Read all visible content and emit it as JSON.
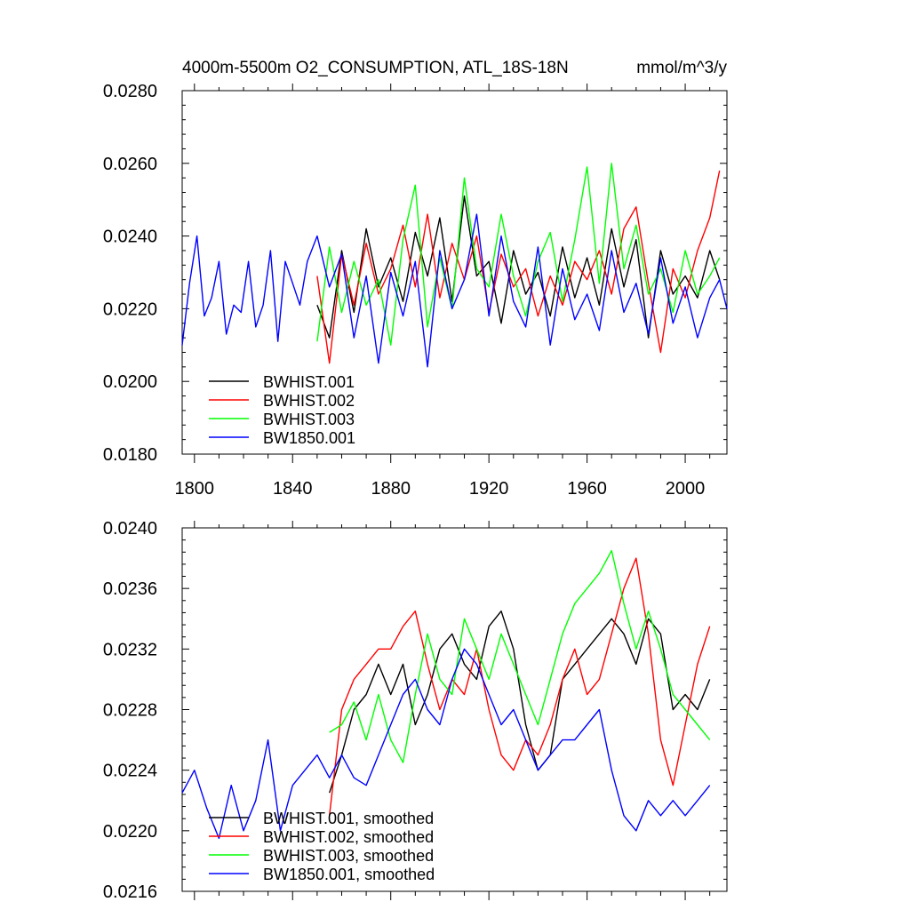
{
  "chart_data": [
    {
      "type": "line",
      "title_left": "4000m-5500m O2_CONSUMPTION, ATL_18S-18N",
      "title_right": "mmol/m^3/y",
      "xlabel": "",
      "ylabel": "",
      "xlim": [
        1795,
        2017
      ],
      "ylim": [
        0.018,
        0.028
      ],
      "xticks": [
        1800,
        1840,
        1880,
        1920,
        1960,
        2000
      ],
      "xtick_labels": [
        "1800",
        "1840",
        "1880",
        "1920",
        "1960",
        "2000"
      ],
      "yticks": [
        0.018,
        0.02,
        0.022,
        0.024,
        0.026,
        0.028
      ],
      "ytick_labels": [
        "0.0180",
        "0.0200",
        "0.0220",
        "0.0240",
        "0.0260",
        "0.0280"
      ],
      "grid": false,
      "legend_position": "bottom-left",
      "series": [
        {
          "name": "BWHIST.001",
          "color": "#000000",
          "x": [
            1850,
            1855,
            1860,
            1865,
            1870,
            1875,
            1880,
            1885,
            1890,
            1895,
            1900,
            1905,
            1910,
            1915,
            1920,
            1925,
            1930,
            1935,
            1940,
            1945,
            1950,
            1955,
            1960,
            1965,
            1970,
            1975,
            1980,
            1985,
            1990,
            1995,
            2000,
            2005,
            2010,
            2014
          ],
          "values": [
            0.0221,
            0.0212,
            0.0236,
            0.0219,
            0.0242,
            0.0226,
            0.0234,
            0.0222,
            0.0241,
            0.0229,
            0.0245,
            0.0222,
            0.0251,
            0.0229,
            0.0233,
            0.0216,
            0.0236,
            0.0224,
            0.023,
            0.0218,
            0.0237,
            0.0223,
            0.0234,
            0.0221,
            0.0242,
            0.0226,
            0.0239,
            0.0212,
            0.0236,
            0.0224,
            0.0229,
            0.0223,
            0.0236,
            0.0228
          ]
        },
        {
          "name": "BWHIST.002",
          "color": "#ff0000",
          "x": [
            1850,
            1855,
            1860,
            1865,
            1870,
            1875,
            1880,
            1885,
            1890,
            1895,
            1900,
            1905,
            1910,
            1915,
            1920,
            1925,
            1930,
            1935,
            1940,
            1945,
            1950,
            1955,
            1960,
            1965,
            1970,
            1975,
            1980,
            1985,
            1990,
            1995,
            2000,
            2005,
            2010,
            2014
          ],
          "values": [
            0.0229,
            0.0205,
            0.0235,
            0.0221,
            0.0238,
            0.0224,
            0.0231,
            0.0243,
            0.0226,
            0.0246,
            0.0223,
            0.0238,
            0.0228,
            0.024,
            0.0219,
            0.0235,
            0.0226,
            0.0231,
            0.0218,
            0.0229,
            0.0221,
            0.0233,
            0.0228,
            0.0236,
            0.0224,
            0.0242,
            0.0248,
            0.0227,
            0.0208,
            0.0231,
            0.0223,
            0.0236,
            0.0245,
            0.0258
          ]
        },
        {
          "name": "BWHIST.003",
          "color": "#00ff00",
          "x": [
            1850,
            1855,
            1860,
            1865,
            1870,
            1875,
            1880,
            1885,
            1890,
            1895,
            1900,
            1905,
            1910,
            1915,
            1920,
            1925,
            1930,
            1935,
            1940,
            1945,
            1950,
            1955,
            1960,
            1965,
            1970,
            1975,
            1980,
            1985,
            1990,
            1995,
            2000,
            2005,
            2010,
            2014
          ],
          "values": [
            0.0211,
            0.0237,
            0.0219,
            0.0233,
            0.0221,
            0.0228,
            0.021,
            0.0239,
            0.0254,
            0.0215,
            0.0234,
            0.022,
            0.0256,
            0.0231,
            0.0226,
            0.0246,
            0.0229,
            0.0218,
            0.0233,
            0.0241,
            0.0222,
            0.0239,
            0.0259,
            0.0227,
            0.026,
            0.0231,
            0.0243,
            0.0224,
            0.0231,
            0.0219,
            0.0236,
            0.0224,
            0.0229,
            0.0234
          ]
        },
        {
          "name": "BW1850.001",
          "color": "#0000ff",
          "x": [
            1795,
            1798,
            1801,
            1804,
            1807,
            1810,
            1813,
            1816,
            1819,
            1822,
            1825,
            1828,
            1831,
            1834,
            1837,
            1840,
            1843,
            1846,
            1850,
            1855,
            1860,
            1865,
            1870,
            1875,
            1880,
            1885,
            1890,
            1895,
            1900,
            1905,
            1910,
            1915,
            1920,
            1925,
            1930,
            1935,
            1940,
            1945,
            1950,
            1955,
            1960,
            1965,
            1970,
            1975,
            1980,
            1985,
            1990,
            1995,
            2000,
            2005,
            2010,
            2014,
            2017
          ],
          "values": [
            0.021,
            0.0227,
            0.024,
            0.0218,
            0.0223,
            0.0233,
            0.0213,
            0.0221,
            0.0219,
            0.0233,
            0.0215,
            0.0221,
            0.0236,
            0.0211,
            0.0233,
            0.0227,
            0.0221,
            0.0233,
            0.024,
            0.0226,
            0.0235,
            0.0212,
            0.0229,
            0.0205,
            0.023,
            0.0218,
            0.0233,
            0.0204,
            0.0236,
            0.022,
            0.0228,
            0.0246,
            0.0218,
            0.024,
            0.0222,
            0.0215,
            0.0237,
            0.021,
            0.0231,
            0.0217,
            0.0224,
            0.0214,
            0.0236,
            0.0219,
            0.0227,
            0.0213,
            0.0234,
            0.0216,
            0.0226,
            0.0212,
            0.0223,
            0.0228,
            0.022
          ]
        }
      ]
    },
    {
      "type": "line",
      "xlabel": "",
      "ylabel": "",
      "xlim": [
        1795,
        2017
      ],
      "ylim": [
        0.0216,
        0.024
      ],
      "xticks": [
        1800,
        1840,
        1880,
        1920,
        1960,
        2000
      ],
      "yticks": [
        0.0216,
        0.022,
        0.0224,
        0.0228,
        0.0232,
        0.0236,
        0.024
      ],
      "ytick_labels": [
        "0.0216",
        "0.0220",
        "0.0224",
        "0.0228",
        "0.0232",
        "0.0236",
        "0.0240"
      ],
      "grid": false,
      "legend_position": "bottom-left",
      "series": [
        {
          "name": "BWHIST.001, smoothed",
          "color": "#000000",
          "x": [
            1855,
            1860,
            1865,
            1870,
            1875,
            1880,
            1885,
            1890,
            1895,
            1900,
            1905,
            1910,
            1915,
            1920,
            1925,
            1930,
            1935,
            1940,
            1945,
            1950,
            1955,
            1960,
            1965,
            1970,
            1975,
            1980,
            1985,
            1990,
            1995,
            2000,
            2005,
            2010
          ],
          "values": [
            0.02225,
            0.0225,
            0.0228,
            0.0229,
            0.0231,
            0.0229,
            0.0231,
            0.0227,
            0.0229,
            0.0232,
            0.0233,
            0.0231,
            0.023,
            0.02335,
            0.02345,
            0.0232,
            0.0227,
            0.0224,
            0.0225,
            0.023,
            0.0231,
            0.0232,
            0.0233,
            0.0234,
            0.0233,
            0.0231,
            0.0234,
            0.0233,
            0.0228,
            0.0229,
            0.0228,
            0.023
          ]
        },
        {
          "name": "BWHIST.002, smoothed",
          "color": "#ff0000",
          "x": [
            1855,
            1860,
            1865,
            1870,
            1875,
            1880,
            1885,
            1890,
            1895,
            1900,
            1905,
            1910,
            1915,
            1920,
            1925,
            1930,
            1935,
            1940,
            1945,
            1950,
            1955,
            1960,
            1965,
            1970,
            1975,
            1980,
            1985,
            1990,
            1995,
            2000,
            2005,
            2010
          ],
          "values": [
            0.0221,
            0.0228,
            0.023,
            0.0231,
            0.0232,
            0.0232,
            0.02335,
            0.02345,
            0.0231,
            0.0228,
            0.023,
            0.0229,
            0.0232,
            0.0228,
            0.0225,
            0.0224,
            0.0226,
            0.0225,
            0.0227,
            0.023,
            0.0232,
            0.0229,
            0.023,
            0.0233,
            0.0236,
            0.0238,
            0.0233,
            0.0226,
            0.0223,
            0.0227,
            0.0231,
            0.02335
          ]
        },
        {
          "name": "BWHIST.003, smoothed",
          "color": "#00ff00",
          "x": [
            1855,
            1860,
            1865,
            1870,
            1875,
            1880,
            1885,
            1890,
            1895,
            1900,
            1905,
            1910,
            1915,
            1920,
            1925,
            1930,
            1935,
            1940,
            1945,
            1950,
            1955,
            1960,
            1965,
            1970,
            1975,
            1980,
            1985,
            1990,
            1995,
            2000,
            2005,
            2010
          ],
          "values": [
            0.02265,
            0.0227,
            0.02285,
            0.0226,
            0.0229,
            0.0226,
            0.02245,
            0.0229,
            0.0233,
            0.023,
            0.0229,
            0.0234,
            0.0232,
            0.023,
            0.0233,
            0.0231,
            0.0229,
            0.0227,
            0.023,
            0.0233,
            0.0235,
            0.0236,
            0.0237,
            0.02385,
            0.0235,
            0.0232,
            0.02345,
            0.0232,
            0.0229,
            0.0228,
            0.0227,
            0.0226
          ]
        },
        {
          "name": "BW1850.001, smoothed",
          "color": "#0000ff",
          "x": [
            1795,
            1800,
            1805,
            1810,
            1815,
            1820,
            1825,
            1830,
            1835,
            1840,
            1845,
            1850,
            1855,
            1860,
            1865,
            1870,
            1875,
            1880,
            1885,
            1890,
            1895,
            1900,
            1905,
            1910,
            1915,
            1920,
            1925,
            1930,
            1935,
            1940,
            1945,
            1950,
            1955,
            1960,
            1965,
            1970,
            1975,
            1980,
            1985,
            1990,
            1995,
            2000,
            2005,
            2010
          ],
          "values": [
            0.02225,
            0.0224,
            0.02215,
            0.02195,
            0.0223,
            0.022,
            0.0222,
            0.0226,
            0.022,
            0.0223,
            0.0224,
            0.0225,
            0.02235,
            0.0225,
            0.02235,
            0.0223,
            0.0225,
            0.0227,
            0.0229,
            0.023,
            0.0228,
            0.0227,
            0.023,
            0.0232,
            0.0231,
            0.0229,
            0.0227,
            0.0228,
            0.0226,
            0.0224,
            0.0225,
            0.0226,
            0.0226,
            0.0227,
            0.0228,
            0.0224,
            0.0221,
            0.022,
            0.0222,
            0.0221,
            0.0222,
            0.0221,
            0.0222,
            0.0223
          ]
        }
      ]
    }
  ]
}
